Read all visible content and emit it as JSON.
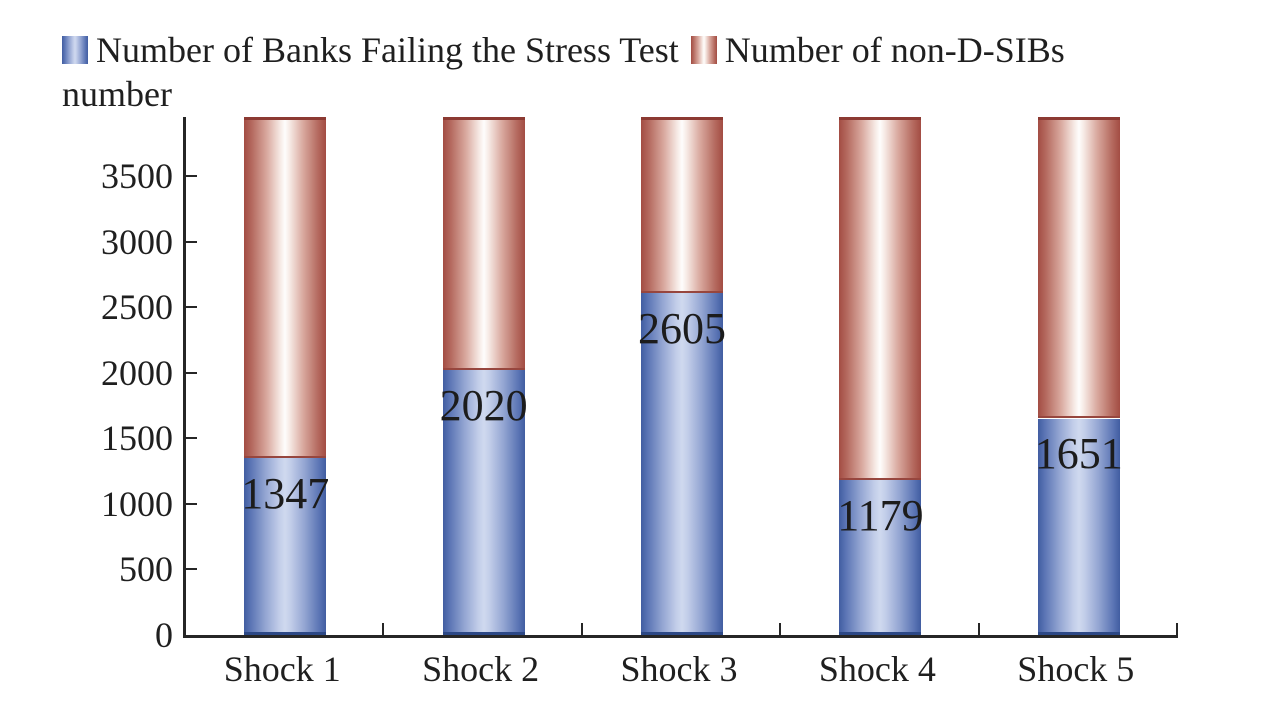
{
  "legend": {
    "items": [
      {
        "id": "failing",
        "label": "Number of Banks Failing the Stress Test",
        "marker": "blue-gradient-square"
      },
      {
        "id": "non_dsibs",
        "label": "Number of non-D-SIBs",
        "marker": "red-gradient-square"
      }
    ]
  },
  "chart_data": {
    "type": "bar",
    "stacked": true,
    "title": "",
    "xlabel": "",
    "ylabel": "number",
    "categories": [
      "Shock 1",
      "Shock 2",
      "Shock 3",
      "Shock 4",
      "Shock 5"
    ],
    "series": [
      {
        "name": "Number of Banks Failing the Stress Test",
        "color_edge": "#415da1",
        "color_center": "#cfd9ef",
        "values": [
          1347,
          2020,
          2605,
          1179,
          1651
        ],
        "data_labels": true
      },
      {
        "name": "Number of non-D-SIBs",
        "color_edge": "#a34c43",
        "color_center": "#fefdfc",
        "extends_to_plot_top": true,
        "values_note": "segments are unlabeled and run from top of blue segment to top of plot area",
        "data_labels": false
      }
    ],
    "yticks": [
      0,
      500,
      1000,
      1500,
      2000,
      2500,
      3000,
      3500
    ],
    "ylim": [
      0,
      3950
    ],
    "grid": false,
    "legend_position": "top-left",
    "colors": {
      "axis": "#262626",
      "text": "#1f1f1f",
      "blue_border": "#2c4886",
      "red_cap": "#8c3a32"
    }
  }
}
